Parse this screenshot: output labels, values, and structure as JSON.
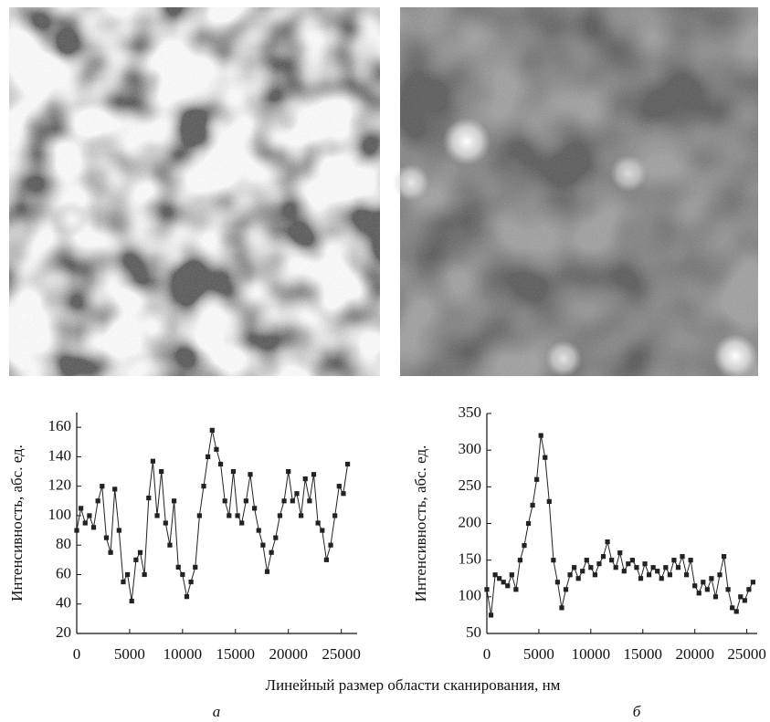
{
  "xlabel": "Линейный размер области сканирования, нм",
  "chart_data": [
    {
      "type": "line",
      "label": "а",
      "ylabel": "Интенсивность, абс. ед.",
      "xlim": [
        0,
        26500
      ],
      "ylim": [
        20,
        170
      ],
      "xticks": [
        0,
        5000,
        10000,
        15000,
        20000,
        25000
      ],
      "yticks": [
        20,
        40,
        60,
        80,
        100,
        120,
        140,
        160
      ],
      "color": "#222222",
      "x": [
        0,
        400,
        800,
        1200,
        1600,
        2000,
        2400,
        2800,
        3200,
        3600,
        4000,
        4400,
        4800,
        5200,
        5600,
        6000,
        6400,
        6800,
        7200,
        7600,
        8000,
        8400,
        8800,
        9200,
        9600,
        10000,
        10400,
        10800,
        11200,
        11600,
        12000,
        12400,
        12800,
        13200,
        13600,
        14000,
        14400,
        14800,
        15200,
        15600,
        16000,
        16400,
        16800,
        17200,
        17600,
        18000,
        18400,
        18800,
        19200,
        19600,
        20000,
        20400,
        20800,
        21200,
        21600,
        22000,
        22400,
        22800,
        23200,
        23600,
        24000,
        24400,
        24800,
        25200,
        25600
      ],
      "values": [
        90,
        105,
        95,
        100,
        92,
        110,
        120,
        85,
        75,
        118,
        90,
        55,
        60,
        42,
        70,
        75,
        60,
        112,
        137,
        100,
        130,
        95,
        80,
        110,
        65,
        60,
        45,
        55,
        65,
        100,
        120,
        140,
        158,
        145,
        135,
        110,
        100,
        130,
        100,
        95,
        110,
        128,
        105,
        90,
        80,
        62,
        75,
        85,
        100,
        110,
        130,
        110,
        115,
        100,
        125,
        110,
        128,
        95,
        90,
        70,
        80,
        100,
        120,
        115,
        135
      ]
    },
    {
      "type": "line",
      "label": "б",
      "ylabel": "Интенсивность, абс. ед.",
      "xlim": [
        0,
        26000
      ],
      "ylim": [
        50,
        350
      ],
      "xticks": [
        0,
        5000,
        10000,
        15000,
        20000,
        25000
      ],
      "yticks": [
        50,
        100,
        150,
        200,
        250,
        300,
        350
      ],
      "color": "#222222",
      "x": [
        0,
        400,
        800,
        1200,
        1600,
        2000,
        2400,
        2800,
        3200,
        3600,
        4000,
        4400,
        4800,
        5200,
        5600,
        6000,
        6400,
        6800,
        7200,
        7600,
        8000,
        8400,
        8800,
        9200,
        9600,
        10000,
        10400,
        10800,
        11200,
        11600,
        12000,
        12400,
        12800,
        13200,
        13600,
        14000,
        14400,
        14800,
        15200,
        15600,
        16000,
        16400,
        16800,
        17200,
        17600,
        18000,
        18400,
        18800,
        19200,
        19600,
        20000,
        20400,
        20800,
        21200,
        21600,
        22000,
        22400,
        22800,
        23200,
        23600,
        24000,
        24400,
        24800,
        25200,
        25600
      ],
      "values": [
        110,
        75,
        130,
        125,
        120,
        115,
        130,
        110,
        150,
        170,
        200,
        225,
        260,
        320,
        290,
        230,
        150,
        120,
        85,
        110,
        130,
        140,
        125,
        135,
        150,
        140,
        130,
        145,
        155,
        175,
        150,
        140,
        160,
        135,
        145,
        150,
        140,
        125,
        145,
        130,
        140,
        135,
        125,
        140,
        130,
        150,
        140,
        155,
        130,
        150,
        115,
        105,
        120,
        110,
        125,
        100,
        130,
        155,
        110,
        85,
        80,
        100,
        95,
        110,
        120
      ]
    }
  ]
}
